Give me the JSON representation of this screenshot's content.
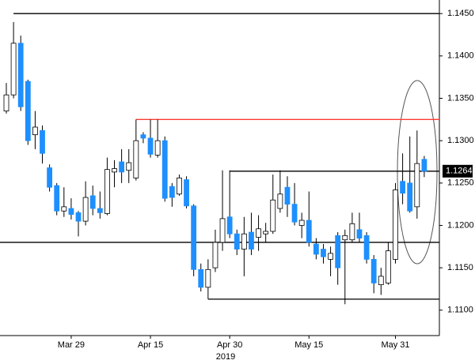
{
  "chart_data": {
    "type": "candlestick",
    "categories": [
      null,
      null,
      null,
      null,
      null,
      null,
      null,
      null,
      null,
      "Mar 29",
      null,
      null,
      null,
      null,
      null,
      null,
      null,
      null,
      null,
      null,
      "Apr 15",
      null,
      null,
      null,
      null,
      null,
      null,
      null,
      null,
      null,
      null,
      "Apr 30",
      null,
      null,
      null,
      null,
      null,
      null,
      null,
      null,
      null,
      null,
      "May 15",
      null,
      null,
      null,
      null,
      null,
      null,
      null,
      null,
      null,
      null,
      null,
      "May 31",
      null,
      null,
      null,
      null
    ],
    "x_sublabel": "2019",
    "open": [
      1.1335,
      1.1354,
      1.1415,
      1.137,
      1.1307,
      1.1312,
      1.1268,
      1.1247,
      1.1217,
      1.122,
      1.1215,
      1.1205,
      1.1235,
      1.122,
      1.1214,
      1.1263,
      1.1275,
      1.1265,
      1.1256,
      1.1307,
      1.1303,
      1.1283,
      1.13,
      1.1246,
      1.1237,
      1.1254,
      1.1223,
      1.1148,
      1.1127,
      1.115,
      1.118,
      1.121,
      1.119,
      1.1172,
      1.1192,
      1.1186,
      1.119,
      1.1193,
      1.122,
      1.1245,
      1.1225,
      1.12,
      1.1206,
      1.1178,
      1.1172,
      1.116,
      1.1188,
      1.1183,
      1.1183,
      1.1195,
      1.1188,
      1.116,
      1.113,
      1.1132,
      1.116,
      1.1252,
      1.125,
      1.1222,
      1.1278
    ],
    "high": [
      1.1368,
      1.144,
      1.1424,
      1.1372,
      1.1335,
      1.1318,
      1.1272,
      1.125,
      1.1245,
      1.1232,
      1.1217,
      1.1252,
      1.1247,
      1.124,
      1.128,
      1.1277,
      1.129,
      1.129,
      1.1325,
      1.131,
      1.1325,
      1.1325,
      1.1305,
      1.125,
      1.126,
      1.1258,
      1.1225,
      1.1155,
      1.116,
      1.1195,
      1.1265,
      1.1265,
      1.1195,
      1.121,
      1.1215,
      1.1212,
      1.1203,
      1.126,
      1.1265,
      1.1258,
      1.125,
      1.1215,
      1.124,
      1.1185,
      1.1178,
      1.1175,
      1.1192,
      1.1195,
      1.1215,
      1.1215,
      1.1192,
      1.1165,
      1.115,
      1.118,
      1.125,
      1.1285,
      1.1305,
      1.1312,
      1.1282
    ],
    "low": [
      1.1332,
      1.135,
      1.1335,
      1.1295,
      1.129,
      1.1273,
      1.124,
      1.1212,
      1.121,
      1.1207,
      1.1187,
      1.12,
      1.1212,
      1.1208,
      1.1212,
      1.1245,
      1.125,
      1.125,
      1.1253,
      1.1297,
      1.128,
      1.128,
      1.1228,
      1.1222,
      1.1235,
      1.122,
      1.114,
      1.1122,
      1.1113,
      1.1145,
      1.117,
      1.1185,
      1.1165,
      1.114,
      1.1165,
      1.117,
      1.118,
      1.119,
      1.1215,
      1.121,
      1.12,
      1.1185,
      1.1175,
      1.116,
      1.1155,
      1.114,
      1.113,
      1.1107,
      1.118,
      1.118,
      1.1155,
      1.112,
      1.1118,
      1.113,
      1.1155,
      1.1225,
      1.1215,
      1.1208,
      1.1257
    ],
    "close": [
      1.1354,
      1.1415,
      1.134,
      1.13,
      1.1316,
      1.1285,
      1.1245,
      1.1217,
      1.1222,
      1.1213,
      1.1205,
      1.1233,
      1.122,
      1.1215,
      1.1266,
      1.1267,
      1.1263,
      1.1274,
      1.13,
      1.1303,
      1.1284,
      1.13,
      1.1232,
      1.1233,
      1.1256,
      1.1223,
      1.1148,
      1.1127,
      1.1148,
      1.118,
      1.1208,
      1.119,
      1.1172,
      1.119,
      1.1172,
      1.1196,
      1.1193,
      1.123,
      1.1237,
      1.1225,
      1.1204,
      1.1206,
      1.118,
      1.1166,
      1.1163,
      1.1167,
      1.115,
      1.1188,
      1.1202,
      1.1185,
      1.116,
      1.1132,
      1.114,
      1.117,
      1.1242,
      1.1238,
      1.1217,
      1.1273,
      1.1264
    ],
    "up_color": "#ffffff",
    "down_color": "#1e8fff",
    "levels": [
      {
        "value": 1.145,
        "from": 1,
        "color": "#000000"
      },
      {
        "value": 1.1325,
        "from": 18,
        "color": "#ff3b30"
      },
      {
        "value": 1.1264,
        "from": 31,
        "color": "#000000"
      },
      {
        "value": 1.118,
        "from": 0,
        "color": "#000000"
      },
      {
        "value": 1.1113,
        "from": 28,
        "color": "#000000"
      }
    ],
    "ylim": [
      1.107,
      1.1466
    ],
    "yticks": [
      {
        "value": 1.145,
        "label": "1.1450"
      },
      {
        "value": 1.14,
        "label": "1.1400"
      },
      {
        "value": 1.135,
        "label": "1.1350"
      },
      {
        "value": 1.13,
        "label": "1.1300"
      },
      {
        "value": 1.125,
        "label": "1.1250"
      },
      {
        "value": 1.12,
        "label": "1.1200"
      },
      {
        "value": 1.115,
        "label": "1.1150"
      },
      {
        "value": 1.11,
        "label": "1.1100"
      }
    ]
  }
}
